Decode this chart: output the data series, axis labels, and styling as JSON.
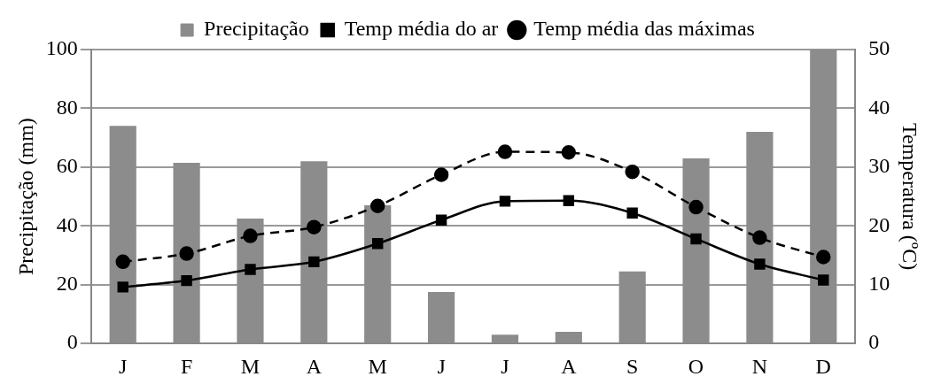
{
  "chart_data": {
    "type": "bar",
    "categories": [
      "J",
      "F",
      "M",
      "A",
      "M",
      "J",
      "J",
      "A",
      "S",
      "O",
      "N",
      "D"
    ],
    "series": [
      {
        "name": "Precipitação",
        "color": "#8c8c8c",
        "values": [
          74,
          61.5,
          42.5,
          62,
          47,
          17.5,
          3,
          4,
          24.5,
          63,
          72,
          100
        ]
      },
      {
        "name": "Temp média do ar",
        "type": "line",
        "axis": "y2",
        "color": "#000000",
        "marker": "square",
        "line_style": "solid",
        "values": [
          9.6,
          10.7,
          12.6,
          13.9,
          17,
          21,
          24.2,
          24.3,
          22.2,
          17.8,
          13.5,
          10.8
        ]
      },
      {
        "name": "Temp média das máximas",
        "type": "line",
        "axis": "y2",
        "color": "#000000",
        "marker": "circle",
        "line_style": "dashed",
        "values": [
          13.9,
          15.3,
          18.3,
          19.8,
          23.4,
          28.7,
          32.6,
          32.5,
          29.2,
          23.2,
          18,
          14.7
        ]
      }
    ],
    "ylabel": "Precipitação (mm)",
    "y2label": "Temperatura (ºC)",
    "ylim": [
      0,
      100
    ],
    "yticks": [
      0,
      20,
      40,
      60,
      80,
      100
    ],
    "y2lim": [
      0,
      50
    ],
    "y2ticks": [
      0,
      10,
      20,
      30,
      40,
      50
    ],
    "grid": "y",
    "legend": "top"
  }
}
